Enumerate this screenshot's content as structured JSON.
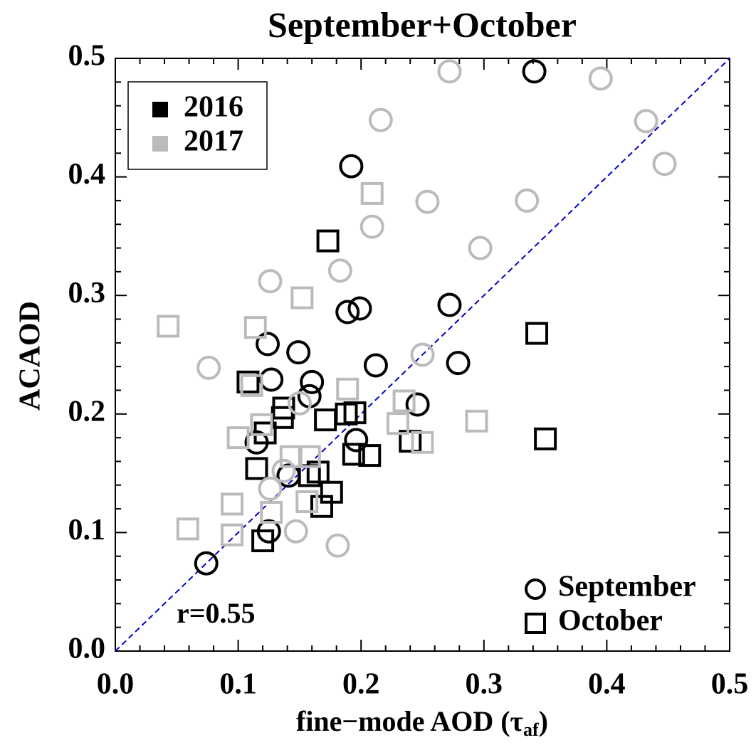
{
  "chart_data": {
    "type": "scatter",
    "title": "September+October",
    "xlabel": {
      "text": "fine−mode AOD (τ",
      "sub": "af",
      "end": ")"
    },
    "ylabel": "ACAOD",
    "xlim": [
      0,
      0.5
    ],
    "ylim": [
      0,
      0.5
    ],
    "xticks": [
      {
        "value": 0,
        "label": "0.0"
      },
      {
        "value": 0.1,
        "label": "0.1"
      },
      {
        "value": 0.2,
        "label": "0.2"
      },
      {
        "value": 0.3,
        "label": "0.3"
      },
      {
        "value": 0.4,
        "label": "0.4"
      },
      {
        "value": 0.5,
        "label": "0.5"
      }
    ],
    "yticks": [
      {
        "value": 0,
        "label": "0.0"
      },
      {
        "value": 0.1,
        "label": "0.1"
      },
      {
        "value": 0.2,
        "label": "0.2"
      },
      {
        "value": 0.3,
        "label": "0.3"
      },
      {
        "value": 0.4,
        "label": "0.4"
      },
      {
        "value": 0.5,
        "label": "0.5"
      }
    ],
    "xminorticks": [
      0.02,
      0.04,
      0.06,
      0.08,
      0.12,
      0.14,
      0.16,
      0.18,
      0.22,
      0.24,
      0.26,
      0.28,
      0.32,
      0.34,
      0.36,
      0.38,
      0.42,
      0.44,
      0.46,
      0.48
    ],
    "yminorticks": [
      0.02,
      0.04,
      0.06,
      0.08,
      0.12,
      0.14,
      0.16,
      0.18,
      0.22,
      0.24,
      0.26,
      0.28,
      0.32,
      0.34,
      0.36,
      0.38,
      0.42,
      0.44,
      0.46,
      0.48
    ],
    "diagonal": {
      "color": "#0000cc"
    },
    "annotation": "r=0.55",
    "color_legend": [
      {
        "label": "2016",
        "color": "#000000"
      },
      {
        "label": "2017",
        "color": "#bbbbbb"
      }
    ],
    "marker_legend": [
      {
        "label": "September",
        "marker": "circle"
      },
      {
        "label": "October",
        "marker": "square"
      }
    ],
    "series": [
      {
        "color": "#000000",
        "marker": "circle",
        "x": [
          0.341,
          0.192,
          0.272,
          0.199,
          0.189,
          0.279,
          0.212,
          0.149,
          0.124,
          0.127,
          0.16,
          0.158,
          0.246,
          0.196,
          0.115,
          0.141,
          0.125,
          0.074
        ],
        "values": [
          0.489,
          0.409,
          0.292,
          0.289,
          0.286,
          0.243,
          0.241,
          0.252,
          0.259,
          0.229,
          0.227,
          0.215,
          0.208,
          0.178,
          0.176,
          0.148,
          0.101,
          0.074
        ]
      },
      {
        "color": "#000000",
        "marker": "square",
        "x": [
          0.173,
          0.343,
          0.108,
          0.137,
          0.136,
          0.171,
          0.195,
          0.188,
          0.122,
          0.35,
          0.24,
          0.194,
          0.207,
          0.115,
          0.165,
          0.158,
          0.176,
          0.168,
          0.12
        ],
        "values": [
          0.346,
          0.268,
          0.227,
          0.205,
          0.197,
          0.195,
          0.201,
          0.2,
          0.184,
          0.179,
          0.177,
          0.166,
          0.165,
          0.154,
          0.151,
          0.148,
          0.134,
          0.122,
          0.093
        ]
      },
      {
        "color": "#bbbbbb",
        "marker": "circle",
        "x": [
          0.272,
          0.395,
          0.216,
          0.432,
          0.447,
          0.254,
          0.335,
          0.209,
          0.297,
          0.183,
          0.126,
          0.25,
          0.076,
          0.15,
          0.137,
          0.126,
          0.147,
          0.181
        ],
        "values": [
          0.489,
          0.483,
          0.448,
          0.447,
          0.411,
          0.379,
          0.38,
          0.358,
          0.34,
          0.321,
          0.312,
          0.25,
          0.239,
          0.209,
          0.152,
          0.137,
          0.101,
          0.089
        ]
      },
      {
        "color": "#bbbbbb",
        "marker": "square",
        "x": [
          0.209,
          0.152,
          0.043,
          0.114,
          0.111,
          0.189,
          0.235,
          0.23,
          0.294,
          0.119,
          0.1,
          0.25,
          0.158,
          0.143,
          0.095,
          0.156,
          0.127,
          0.059,
          0.095
        ],
        "values": [
          0.386,
          0.298,
          0.274,
          0.273,
          0.224,
          0.221,
          0.211,
          0.192,
          0.194,
          0.191,
          0.18,
          0.176,
          0.164,
          0.164,
          0.124,
          0.126,
          0.117,
          0.103,
          0.098
        ]
      }
    ]
  }
}
